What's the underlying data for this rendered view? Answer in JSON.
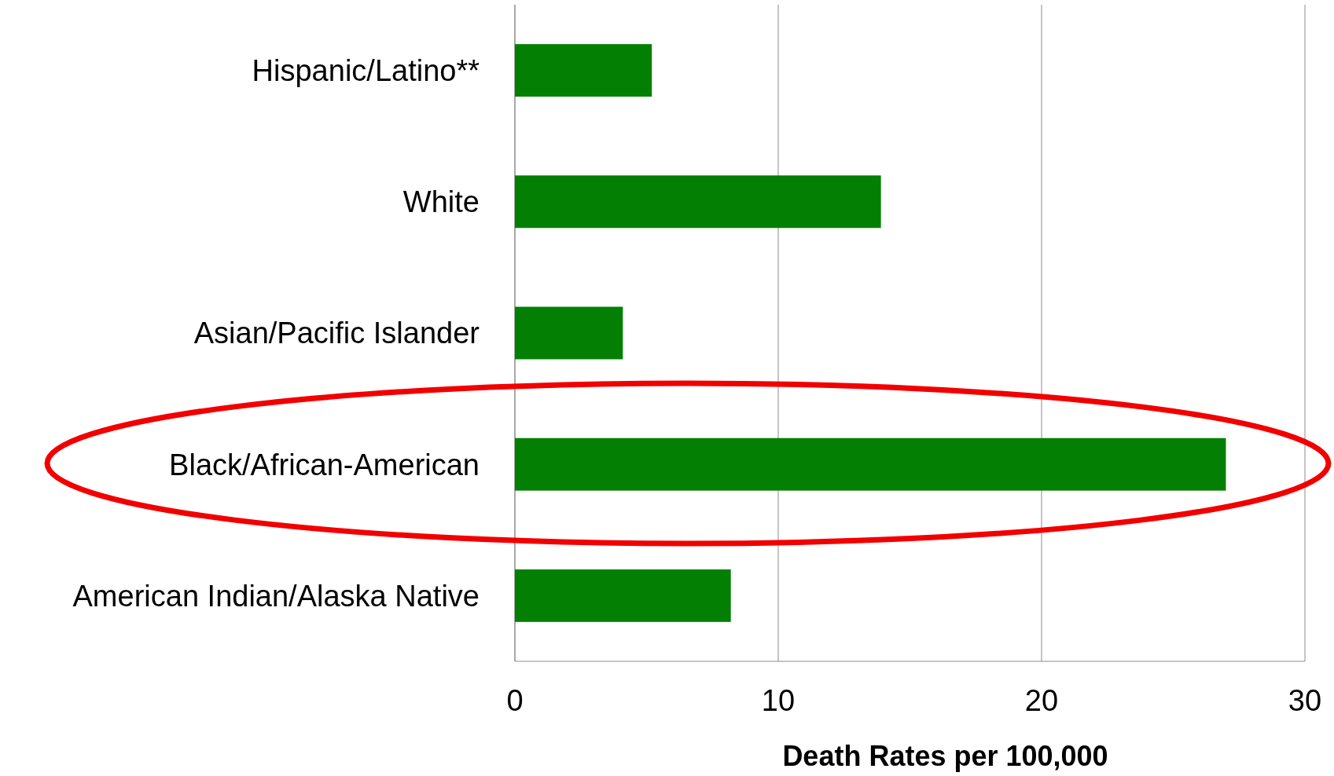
{
  "chart_data": {
    "type": "bar",
    "orientation": "horizontal",
    "xlabel": "Death Rates per 100,000",
    "categories": [
      "Hispanic/Latino**",
      "White",
      "Asian/Pacific Islander",
      "Black/African-American",
      "American Indian/Alaska Native"
    ],
    "values": [
      5.2,
      13.9,
      4.1,
      27.0,
      8.2
    ],
    "color": "#038003",
    "xlim": [
      0,
      30
    ],
    "xticks": [
      0,
      10,
      20,
      30
    ],
    "grid": "x"
  }
}
